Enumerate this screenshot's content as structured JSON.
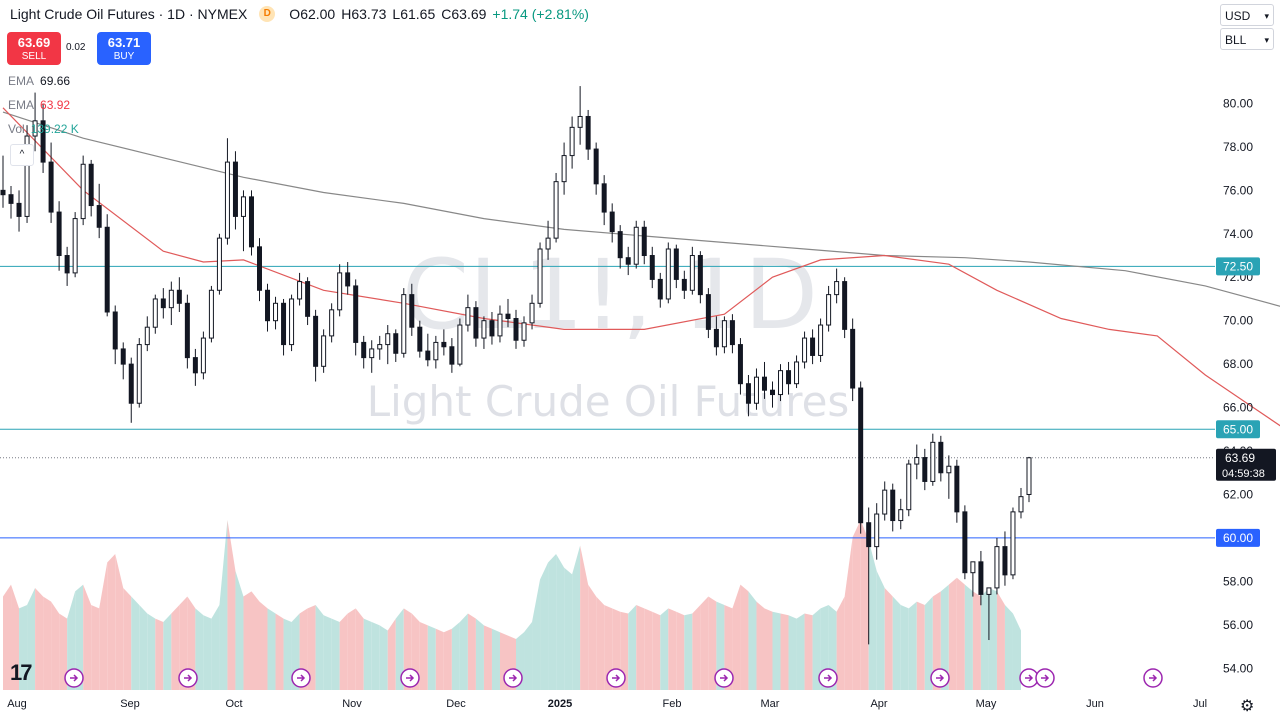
{
  "header": {
    "symbol_title": "Light Crude Oil Futures · 1D · NYMEX",
    "badge": "D",
    "open_label": "O",
    "open": "62.00",
    "high_label": "H",
    "high": "63.73",
    "low_label": "L",
    "low": "61.65",
    "close_label": "C",
    "close": "63.69",
    "change": "+1.74 (+2.81%)"
  },
  "trade": {
    "sell_price": "63.69",
    "sell_label": "SELL",
    "spread": "0.02",
    "buy_price": "63.71",
    "buy_label": "BUY"
  },
  "indicators": [
    {
      "name": "EMA",
      "value": "69.66",
      "color": "#787b86"
    },
    {
      "name": "EMA",
      "value": "63.92",
      "color": "#f23645"
    },
    {
      "name": "Vol",
      "value": "139.22 K",
      "color": "#26a69a"
    }
  ],
  "toolbar": {
    "currency": "USD",
    "unit": "BLL"
  },
  "watermark": {
    "line1": "CL1!, 1D",
    "line2": "Light Crude Oil Futures"
  },
  "colors": {
    "up": "#089981",
    "down": "#f23645",
    "ema_long": "#888888",
    "ema_short": "#e05a5a",
    "hline": "#2aa3b5",
    "hline_blue": "#2962ff",
    "vol_up": "#bfe3df",
    "vol_down": "#f7c4c4"
  },
  "icons": {
    "logo": "tradingview-logo-icon",
    "settings": "gear-icon",
    "event": "dividend-arrow-icon"
  },
  "chart_data": {
    "type": "candlestick",
    "title": "Light Crude Oil Futures",
    "ylim": [
      53,
      82
    ],
    "y_ticks": [
      "80.00",
      "78.00",
      "76.00",
      "74.00",
      "72.00",
      "70.00",
      "68.00",
      "66.00",
      "64.00",
      "62.00",
      "60.00",
      "58.00",
      "56.00",
      "54.00"
    ],
    "x_ticks": [
      "Aug",
      "Sep",
      "Oct",
      "Nov",
      "Dec",
      "2025",
      "Feb",
      "Mar",
      "Apr",
      "May",
      "Jun",
      "Jul"
    ],
    "price_levels": [
      {
        "value": 72.5,
        "label": "72.50",
        "style": "hline"
      },
      {
        "value": 65.0,
        "label": "65.00",
        "style": "hline"
      },
      {
        "value": 60.0,
        "label": "60.00",
        "style": "hline_blue"
      }
    ],
    "last_price": {
      "value": 63.69,
      "label": "63.69",
      "countdown": "04:59:38"
    },
    "series": [
      {
        "name": "EMA",
        "color": "#888888",
        "values": [
          [
            0,
            79.6
          ],
          [
            10,
            78.4
          ],
          [
            20,
            77.5
          ],
          [
            30,
            76.6
          ],
          [
            40,
            75.9
          ],
          [
            50,
            75.4
          ],
          [
            60,
            74.7
          ],
          [
            70,
            74.2
          ],
          [
            80,
            73.9
          ],
          [
            90,
            73.6
          ],
          [
            100,
            73.3
          ],
          [
            110,
            73.0
          ],
          [
            120,
            72.9
          ],
          [
            128,
            72.7
          ],
          [
            140,
            72.3
          ],
          [
            150,
            71.6
          ],
          [
            160,
            70.6
          ],
          [
            166,
            69.66
          ]
        ]
      },
      {
        "name": "EMA",
        "color": "#e05a5a",
        "values": [
          [
            0,
            79.8
          ],
          [
            10,
            76.0
          ],
          [
            20,
            73.2
          ],
          [
            25,
            72.7
          ],
          [
            30,
            72.8
          ],
          [
            40,
            71.4
          ],
          [
            50,
            70.8
          ],
          [
            60,
            70.1
          ],
          [
            70,
            69.6
          ],
          [
            80,
            69.6
          ],
          [
            90,
            70.3
          ],
          [
            96,
            72.0
          ],
          [
            102,
            72.8
          ],
          [
            110,
            73.0
          ],
          [
            118,
            72.6
          ],
          [
            124,
            71.4
          ],
          [
            132,
            70.1
          ],
          [
            138,
            69.6
          ],
          [
            144,
            69.3
          ],
          [
            150,
            67.5
          ],
          [
            156,
            66.0
          ],
          [
            162,
            64.5
          ],
          [
            166,
            63.92
          ]
        ]
      }
    ],
    "candles": [
      [
        76,
        77.6,
        75.2,
        75.8
      ],
      [
        75.8,
        76.2,
        74.7,
        75.4
      ],
      [
        75.4,
        76.0,
        74.1,
        74.8
      ],
      [
        74.8,
        79.0,
        74.5,
        78.5
      ],
      [
        78.5,
        80.5,
        77.8,
        79.2
      ],
      [
        79.2,
        80.0,
        76.8,
        77.3
      ],
      [
        77.3,
        78.2,
        74.5,
        75.0
      ],
      [
        75.0,
        75.5,
        72.3,
        73.0
      ],
      [
        73.0,
        73.4,
        71.6,
        72.2
      ],
      [
        72.2,
        75.0,
        72.0,
        74.7
      ],
      [
        74.7,
        77.6,
        74.4,
        77.2
      ],
      [
        77.2,
        77.4,
        74.8,
        75.3
      ],
      [
        75.3,
        76.3,
        73.8,
        74.3
      ],
      [
        74.3,
        74.9,
        70.2,
        70.4
      ],
      [
        70.4,
        70.7,
        68.0,
        68.7
      ],
      [
        68.7,
        69.0,
        67.3,
        68.0
      ],
      [
        68.0,
        68.3,
        65.3,
        66.2
      ],
      [
        66.2,
        69.2,
        66.0,
        68.9
      ],
      [
        68.9,
        70.2,
        68.6,
        69.7
      ],
      [
        69.7,
        71.2,
        69.4,
        71.0
      ],
      [
        71.0,
        71.5,
        70.1,
        70.6
      ],
      [
        70.6,
        71.8,
        69.8,
        71.4
      ],
      [
        71.4,
        72.0,
        70.4,
        70.8
      ],
      [
        70.8,
        71.2,
        67.8,
        68.3
      ],
      [
        68.3,
        68.7,
        67.0,
        67.6
      ],
      [
        67.6,
        69.5,
        67.3,
        69.2
      ],
      [
        69.2,
        71.6,
        69.0,
        71.4
      ],
      [
        71.4,
        74.0,
        71.2,
        73.8
      ],
      [
        73.8,
        78.4,
        73.5,
        77.3
      ],
      [
        77.3,
        77.8,
        74.2,
        74.8
      ],
      [
        74.8,
        76.0,
        73.2,
        75.7
      ],
      [
        75.7,
        76.0,
        73.0,
        73.4
      ],
      [
        73.4,
        73.8,
        70.9,
        71.4
      ],
      [
        71.4,
        71.7,
        69.5,
        70.0
      ],
      [
        70.0,
        71.1,
        69.6,
        70.8
      ],
      [
        70.8,
        71.0,
        68.4,
        68.9
      ],
      [
        68.9,
        71.2,
        68.6,
        71.0
      ],
      [
        71.0,
        72.2,
        70.7,
        71.8
      ],
      [
        71.8,
        72.0,
        69.8,
        70.2
      ],
      [
        70.2,
        70.5,
        67.2,
        67.9
      ],
      [
        67.9,
        69.6,
        67.6,
        69.3
      ],
      [
        69.3,
        70.8,
        69.0,
        70.5
      ],
      [
        70.5,
        72.6,
        70.2,
        72.2
      ],
      [
        72.2,
        72.7,
        71.2,
        71.6
      ],
      [
        71.6,
        71.9,
        68.4,
        69.0
      ],
      [
        69.0,
        69.3,
        67.8,
        68.3
      ],
      [
        68.3,
        69.1,
        67.6,
        68.7
      ],
      [
        68.7,
        69.3,
        68.2,
        68.9
      ],
      [
        68.9,
        69.8,
        68.0,
        69.4
      ],
      [
        69.4,
        69.6,
        68.1,
        68.5
      ],
      [
        68.5,
        71.5,
        68.3,
        71.2
      ],
      [
        71.2,
        71.7,
        69.3,
        69.7
      ],
      [
        69.7,
        70.0,
        68.3,
        68.6
      ],
      [
        68.6,
        69.4,
        67.9,
        68.2
      ],
      [
        68.2,
        69.3,
        67.8,
        69.0
      ],
      [
        69.0,
        69.6,
        68.4,
        68.8
      ],
      [
        68.8,
        69.2,
        67.6,
        68.0
      ],
      [
        68.0,
        70.1,
        67.9,
        69.8
      ],
      [
        69.8,
        71.2,
        69.5,
        70.6
      ],
      [
        70.6,
        70.9,
        68.8,
        69.2
      ],
      [
        69.2,
        70.2,
        68.7,
        70.0
      ],
      [
        70.0,
        70.4,
        68.9,
        69.3
      ],
      [
        69.3,
        70.7,
        69.0,
        70.3
      ],
      [
        70.3,
        71.0,
        69.7,
        70.1
      ],
      [
        70.1,
        70.5,
        68.7,
        69.1
      ],
      [
        69.1,
        70.2,
        68.8,
        69.9
      ],
      [
        69.9,
        71.2,
        69.6,
        70.8
      ],
      [
        70.8,
        73.6,
        70.6,
        73.3
      ],
      [
        73.3,
        74.6,
        72.8,
        73.8
      ],
      [
        73.8,
        76.8,
        73.6,
        76.4
      ],
      [
        76.4,
        78.2,
        75.8,
        77.6
      ],
      [
        77.6,
        79.4,
        77.0,
        78.9
      ],
      [
        78.9,
        80.8,
        78.1,
        79.4
      ],
      [
        79.4,
        79.7,
        77.4,
        77.9
      ],
      [
        77.9,
        78.2,
        75.8,
        76.3
      ],
      [
        76.3,
        76.7,
        74.4,
        75.0
      ],
      [
        75.0,
        75.4,
        73.6,
        74.1
      ],
      [
        74.1,
        74.4,
        72.4,
        72.9
      ],
      [
        72.9,
        73.4,
        72.1,
        72.6
      ],
      [
        72.6,
        74.6,
        72.4,
        74.3
      ],
      [
        74.3,
        74.6,
        72.6,
        73.0
      ],
      [
        73.0,
        73.4,
        71.5,
        71.9
      ],
      [
        71.9,
        72.2,
        70.6,
        71.0
      ],
      [
        71.0,
        73.6,
        70.8,
        73.3
      ],
      [
        73.3,
        73.5,
        71.5,
        71.9
      ],
      [
        71.9,
        72.3,
        71.0,
        71.4
      ],
      [
        71.4,
        73.4,
        71.2,
        73.0
      ],
      [
        73.0,
        73.2,
        70.8,
        71.2
      ],
      [
        71.2,
        71.5,
        69.2,
        69.6
      ],
      [
        69.6,
        70.2,
        68.4,
        68.8
      ],
      [
        68.8,
        70.2,
        68.5,
        70.0
      ],
      [
        70.0,
        70.3,
        68.5,
        68.9
      ],
      [
        68.9,
        69.2,
        66.6,
        67.1
      ],
      [
        67.1,
        67.5,
        65.6,
        66.2
      ],
      [
        66.2,
        67.8,
        65.9,
        67.4
      ],
      [
        67.4,
        68.1,
        66.4,
        66.8
      ],
      [
        66.8,
        67.2,
        66.0,
        66.6
      ],
      [
        66.6,
        68.0,
        66.3,
        67.7
      ],
      [
        67.7,
        68.1,
        66.6,
        67.1
      ],
      [
        67.1,
        68.4,
        66.9,
        68.1
      ],
      [
        68.1,
        69.5,
        67.8,
        69.2
      ],
      [
        69.2,
        69.6,
        68.0,
        68.4
      ],
      [
        68.4,
        70.1,
        68.1,
        69.8
      ],
      [
        69.8,
        71.6,
        69.5,
        71.2
      ],
      [
        71.2,
        72.4,
        70.8,
        71.8
      ],
      [
        71.8,
        72.0,
        69.2,
        69.6
      ],
      [
        69.6,
        70.1,
        66.3,
        66.9
      ],
      [
        66.9,
        67.2,
        60.2,
        60.7
      ],
      [
        60.7,
        61.4,
        55.1,
        59.6
      ],
      [
        59.6,
        61.6,
        59.0,
        61.1
      ],
      [
        61.1,
        62.6,
        60.8,
        62.2
      ],
      [
        62.2,
        62.5,
        60.3,
        60.8
      ],
      [
        60.8,
        61.8,
        60.4,
        61.3
      ],
      [
        61.3,
        63.6,
        61.0,
        63.4
      ],
      [
        63.4,
        64.3,
        62.7,
        63.7
      ],
      [
        63.7,
        64.1,
        62.2,
        62.6
      ],
      [
        62.6,
        64.8,
        62.4,
        64.4
      ],
      [
        64.4,
        64.7,
        62.6,
        63.0
      ],
      [
        63.0,
        63.8,
        61.8,
        63.3
      ],
      [
        63.3,
        63.6,
        60.7,
        61.2
      ],
      [
        61.2,
        61.5,
        58.1,
        58.4
      ],
      [
        58.4,
        58.8,
        57.3,
        58.9
      ],
      [
        58.9,
        59.4,
        56.9,
        57.4
      ],
      [
        57.4,
        57.7,
        55.3,
        57.7
      ],
      [
        57.7,
        60.0,
        57.4,
        59.6
      ],
      [
        59.6,
        60.3,
        57.8,
        58.3
      ],
      [
        58.3,
        61.4,
        58.1,
        61.2
      ],
      [
        61.2,
        62.3,
        60.9,
        61.9
      ],
      [
        62.0,
        63.73,
        61.65,
        63.69
      ]
    ],
    "volume": {
      "y_range": [
        0,
        1
      ],
      "note": "relative volume area fills",
      "values": [
        0.55,
        0.62,
        0.48,
        0.5,
        0.6,
        0.55,
        0.52,
        0.45,
        0.42,
        0.58,
        0.62,
        0.5,
        0.48,
        0.75,
        0.8,
        0.6,
        0.55,
        0.5,
        0.45,
        0.42,
        0.4,
        0.45,
        0.5,
        0.55,
        0.48,
        0.44,
        0.42,
        0.5,
        1.0,
        0.7,
        0.55,
        0.58,
        0.52,
        0.48,
        0.45,
        0.42,
        0.4,
        0.45,
        0.48,
        0.5,
        0.44,
        0.42,
        0.4,
        0.45,
        0.48,
        0.42,
        0.4,
        0.38,
        0.35,
        0.42,
        0.48,
        0.45,
        0.4,
        0.38,
        0.36,
        0.34,
        0.36,
        0.4,
        0.45,
        0.42,
        0.38,
        0.36,
        0.34,
        0.32,
        0.3,
        0.34,
        0.4,
        0.65,
        0.75,
        0.8,
        0.72,
        0.68,
        0.85,
        0.62,
        0.55,
        0.5,
        0.48,
        0.46,
        0.45,
        0.5,
        0.48,
        0.46,
        0.44,
        0.48,
        0.46,
        0.44,
        0.45,
        0.5,
        0.55,
        0.52,
        0.5,
        0.48,
        0.62,
        0.58,
        0.52,
        0.48,
        0.46,
        0.45,
        0.44,
        0.42,
        0.45,
        0.44,
        0.48,
        0.5,
        0.46,
        0.55,
        0.9,
        1.0,
        0.88,
        0.7,
        0.6,
        0.55,
        0.5,
        0.48,
        0.52,
        0.5,
        0.55,
        0.58,
        0.62,
        0.66,
        0.62,
        0.58,
        0.55,
        0.6,
        0.58,
        0.5,
        0.45,
        0.35
      ]
    }
  }
}
